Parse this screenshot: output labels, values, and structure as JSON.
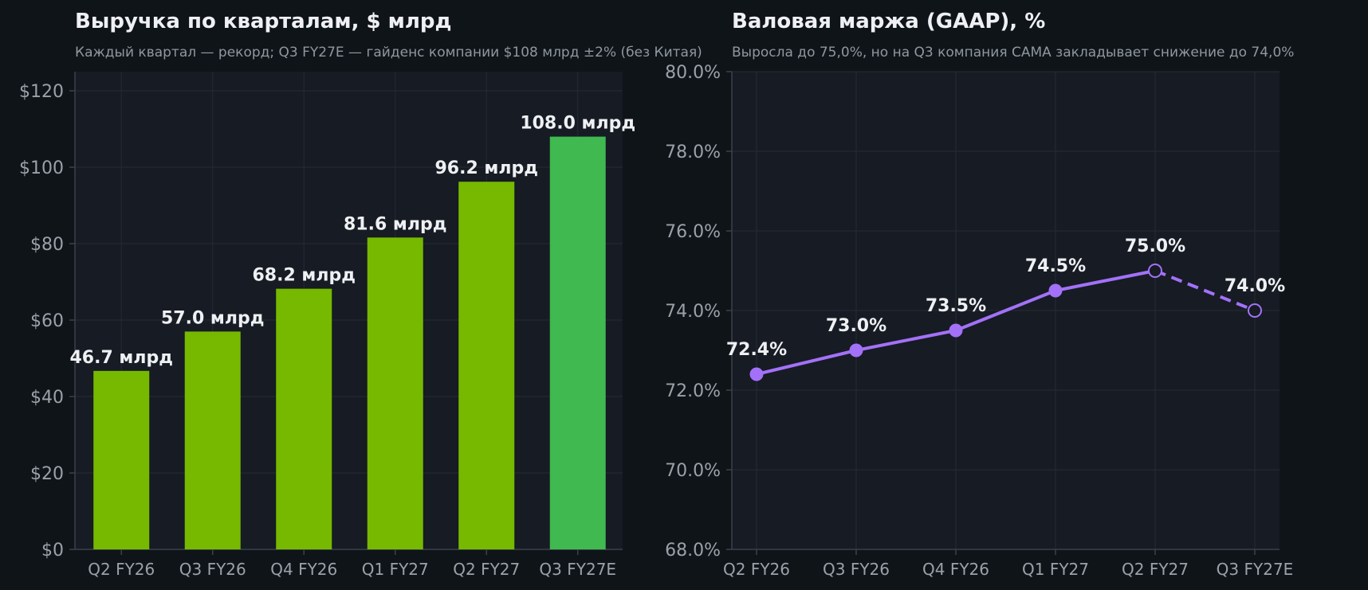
{
  "theme": {
    "page_bg": "#0f1419",
    "plot_bg": "#161b24",
    "grid": "#252b34",
    "axis": "#3a414a",
    "bar_actual": "#76b900",
    "bar_estimate": "#3fb950",
    "line": "#a371f7"
  },
  "chart_data": [
    {
      "type": "bar",
      "title": "Выручка по кварталам, $ млрд",
      "subtitle": "Каждый квартал — рекорд; Q3 FY27E — гайденс компании $108 млрд ±2% (без Китая)",
      "categories": [
        "Q2 FY26",
        "Q3 FY26",
        "Q4 FY26",
        "Q1 FY27",
        "Q2 FY27",
        "Q3 FY27E"
      ],
      "values": [
        46.7,
        57.0,
        68.2,
        81.6,
        96.2,
        108.0
      ],
      "data_labels": [
        "46.7 млрд",
        "57.0 млрд",
        "68.2 млрд",
        "81.6 млрд",
        "96.2 млрд",
        "108.0 млрд"
      ],
      "estimate_index": 5,
      "yticks": [
        "$0",
        "$20",
        "$40",
        "$60",
        "$80",
        "$100",
        "$120"
      ],
      "ytick_values": [
        0,
        20,
        40,
        60,
        80,
        100,
        120
      ],
      "ylim": [
        0,
        125
      ],
      "grid": true
    },
    {
      "type": "line",
      "title": "Валовая маржа (GAAP), %",
      "subtitle": "Выросла до 75,0%, но на Q3 компания CAMA закладывает снижение до 74,0%",
      "categories": [
        "Q2 FY26",
        "Q3 FY26",
        "Q4 FY26",
        "Q1 FY27",
        "Q2 FY27",
        "Q3 FY27E"
      ],
      "values": [
        72.4,
        73.0,
        73.5,
        74.5,
        75.0,
        74.0
      ],
      "data_labels": [
        "72.4%",
        "73.0%",
        "73.5%",
        "74.5%",
        "75.0%",
        "74.0%"
      ],
      "dashed_from_index": 4,
      "hollow_indices": [
        4,
        5
      ],
      "yticks": [
        "68.0%",
        "70.0%",
        "72.0%",
        "74.0%",
        "76.0%",
        "78.0%",
        "80.0%"
      ],
      "ytick_values": [
        68,
        70,
        72,
        74,
        76,
        78,
        80
      ],
      "ylim": [
        68,
        80
      ],
      "grid": true
    }
  ]
}
